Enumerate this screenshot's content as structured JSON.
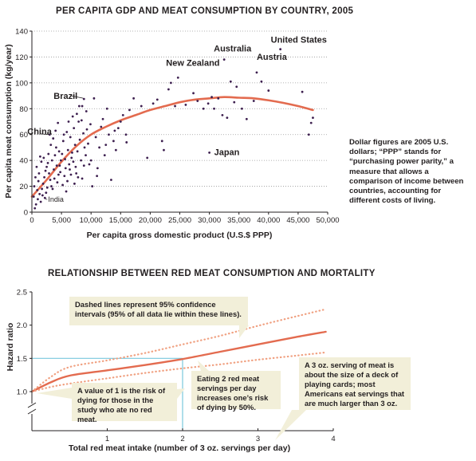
{
  "chart_data": [
    {
      "type": "scatter",
      "title": "PER CAPITA GDP AND MEAT CONSUMPTION BY COUNTRY, 2005",
      "xlabel": "Per capita gross domestic product (U.S.$ PPP)",
      "ylabel": "Per capita meat consumption (kg/year)",
      "xlim": [
        0,
        50000
      ],
      "ylim": [
        0,
        140
      ],
      "x_ticks": [
        "0",
        "5,000",
        "10,000",
        "15,000",
        "20,000",
        "25,000",
        "30,000",
        "35,000",
        "40,000",
        "45,000",
        "50,000"
      ],
      "x_tick_values": [
        0,
        5000,
        10000,
        15000,
        20000,
        25000,
        30000,
        35000,
        40000,
        45000,
        50000
      ],
      "y_ticks": [
        "0",
        "20",
        "40",
        "60",
        "80",
        "100",
        "120",
        "140"
      ],
      "y_tick_values": [
        0,
        20,
        40,
        60,
        80,
        100,
        120,
        140
      ],
      "grid": "horizontal dotted",
      "point_color": "#3d1f4f",
      "trend_color": "#e36b4f",
      "trend_line": [
        [
          0,
          12
        ],
        [
          2500,
          25
        ],
        [
          5000,
          39
        ],
        [
          7500,
          51
        ],
        [
          10000,
          60
        ],
        [
          12500,
          66
        ],
        [
          15000,
          71
        ],
        [
          17500,
          75
        ],
        [
          20000,
          79
        ],
        [
          22500,
          82
        ],
        [
          25000,
          85
        ],
        [
          27500,
          87
        ],
        [
          30000,
          88
        ],
        [
          32500,
          89
        ],
        [
          35000,
          88.5
        ],
        [
          37500,
          88
        ],
        [
          40000,
          86.5
        ],
        [
          42500,
          84.5
        ],
        [
          45000,
          82
        ],
        [
          47500,
          79
        ]
      ],
      "points": [
        [
          42000,
          126
        ],
        [
          32500,
          118
        ],
        [
          38000,
          108
        ],
        [
          24700,
          104
        ],
        [
          8800,
          87.5
        ],
        [
          8500,
          82
        ],
        [
          3000,
          60
        ],
        [
          30000,
          46
        ],
        [
          2200,
          11
        ],
        [
          500,
          3
        ],
        [
          700,
          6
        ],
        [
          1000,
          10
        ],
        [
          1300,
          14
        ],
        [
          1500,
          8
        ],
        [
          1700,
          18
        ],
        [
          1900,
          22
        ],
        [
          2100,
          27
        ],
        [
          2300,
          32
        ],
        [
          2500,
          35
        ],
        [
          2700,
          38
        ],
        [
          2900,
          30
        ],
        [
          3100,
          25
        ],
        [
          3300,
          20
        ],
        [
          3500,
          18
        ],
        [
          3700,
          33
        ],
        [
          3900,
          44
        ],
        [
          4100,
          50
        ],
        [
          4300,
          23
        ],
        [
          4500,
          29
        ],
        [
          4700,
          36
        ],
        [
          4900,
          40
        ],
        [
          5100,
          45
        ],
        [
          5300,
          55
        ],
        [
          5500,
          28
        ],
        [
          5700,
          34
        ],
        [
          5900,
          62
        ],
        [
          6100,
          48
        ],
        [
          6300,
          37
        ],
        [
          6500,
          58
        ],
        [
          6700,
          42
        ],
        [
          6900,
          74
        ],
        [
          7100,
          65
        ],
        [
          7300,
          52
        ],
        [
          7500,
          30
        ],
        [
          7700,
          47
        ],
        [
          7900,
          70
        ],
        [
          8100,
          56
        ],
        [
          8300,
          40
        ],
        [
          8500,
          26
        ],
        [
          8700,
          61
        ],
        [
          8900,
          50
        ],
        [
          9100,
          44
        ],
        [
          9300,
          64
        ],
        [
          9500,
          53
        ],
        [
          9700,
          37
        ],
        [
          9900,
          68
        ],
        [
          10200,
          20
        ],
        [
          10500,
          88
        ],
        [
          10800,
          58
        ],
        [
          11100,
          34
        ],
        [
          11400,
          50
        ],
        [
          11700,
          66
        ],
        [
          12000,
          72
        ],
        [
          12300,
          44
        ],
        [
          12700,
          80
        ],
        [
          13000,
          60
        ],
        [
          13400,
          25
        ],
        [
          13800,
          55
        ],
        [
          14200,
          48
        ],
        [
          14600,
          65
        ],
        [
          15000,
          70
        ],
        [
          15400,
          75
        ],
        [
          15900,
          60
        ],
        [
          16500,
          79
        ],
        [
          17200,
          88
        ],
        [
          18500,
          82
        ],
        [
          19500,
          42
        ],
        [
          20500,
          84
        ],
        [
          21200,
          87
        ],
        [
          22000,
          55
        ],
        [
          22300,
          48
        ],
        [
          23100,
          95
        ],
        [
          23500,
          100
        ],
        [
          24200,
          82
        ],
        [
          26000,
          83
        ],
        [
          27300,
          92
        ],
        [
          28000,
          86
        ],
        [
          29000,
          80
        ],
        [
          29800,
          84
        ],
        [
          30400,
          89
        ],
        [
          30800,
          80
        ],
        [
          31500,
          88
        ],
        [
          32200,
          75
        ],
        [
          33000,
          73
        ],
        [
          33600,
          101
        ],
        [
          34200,
          85
        ],
        [
          34600,
          97
        ],
        [
          35500,
          80
        ],
        [
          36300,
          72
        ],
        [
          37500,
          86
        ],
        [
          38800,
          101
        ],
        [
          40000,
          94
        ],
        [
          45700,
          93
        ],
        [
          46800,
          60
        ],
        [
          47200,
          69
        ],
        [
          47500,
          73
        ],
        [
          400,
          20
        ],
        [
          600,
          27
        ],
        [
          900,
          17
        ],
        [
          1200,
          30
        ],
        [
          1600,
          39
        ],
        [
          2000,
          42
        ],
        [
          2400,
          15
        ],
        [
          2800,
          45
        ],
        [
          3200,
          52
        ],
        [
          3400,
          40
        ],
        [
          3600,
          57
        ],
        [
          4000,
          63
        ],
        [
          4400,
          69
        ],
        [
          4800,
          31
        ],
        [
          5200,
          21
        ],
        [
          5600,
          41
        ],
        [
          6000,
          24
        ],
        [
          6400,
          33
        ],
        [
          6800,
          46
        ],
        [
          7200,
          22
        ],
        [
          7600,
          76
        ],
        [
          8000,
          82
        ],
        [
          8400,
          71
        ],
        [
          8800,
          36
        ],
        [
          9200,
          78
        ],
        [
          10000,
          40
        ],
        [
          11000,
          28
        ],
        [
          12500,
          52
        ],
        [
          14000,
          63
        ],
        [
          16000,
          54
        ],
        [
          300,
          12
        ],
        [
          800,
          35
        ],
        [
          1100,
          24
        ],
        [
          1400,
          43
        ],
        [
          1800,
          13
        ],
        [
          2600,
          19
        ],
        [
          3800,
          26
        ],
        [
          4200,
          36
        ],
        [
          4600,
          47
        ],
        [
          5400,
          60
        ],
        [
          5800,
          16
        ],
        [
          6200,
          70
        ],
        [
          6600,
          29
        ],
        [
          7000,
          39
        ],
        [
          7400,
          35
        ],
        [
          7800,
          27
        ]
      ],
      "labels": [
        {
          "text": "United States",
          "x": 42000,
          "y": 126
        },
        {
          "text": "Australia",
          "x": 32500,
          "y": 118
        },
        {
          "text": "Austria",
          "x": 38000,
          "y": 108
        },
        {
          "text": "New Zealand",
          "x": 24700,
          "y": 104
        },
        {
          "text": "Brazil",
          "x": 8800,
          "y": 87.5
        },
        {
          "text": "China",
          "x": 3000,
          "y": 60
        },
        {
          "text": "Japan",
          "x": 30000,
          "y": 46
        },
        {
          "text": "India",
          "x": 2200,
          "y": 11
        }
      ],
      "note": "Dollar figures are 2005 U.S. dollars; “PPP” stands for “purchasing power parity,” a measure that allows a comparison of income between countries, accounting for different costs of living."
    },
    {
      "type": "line",
      "title": "RELATIONSHIP BETWEEN RED MEAT CONSUMPTION AND MORTALITY",
      "xlabel": "Total red meat intake (number of 3 oz. servings per day)",
      "ylabel": "Hazard ratio",
      "xlim": [
        0,
        4
      ],
      "ylim": [
        1.0,
        2.5
      ],
      "axis_break": true,
      "x_ticks": [
        "1",
        "2",
        "3",
        "4"
      ],
      "x_tick_values": [
        1,
        2,
        3,
        4
      ],
      "y_ticks": [
        "1.0",
        "1.5",
        "2.0",
        "2.5"
      ],
      "y_tick_values": [
        1.0,
        1.5,
        2.0,
        2.5
      ],
      "series": [
        {
          "name": "",
          "style": "solid",
          "color": "#e36b4f",
          "x": [
            0,
            0.25,
            0.5,
            1,
            1.5,
            2,
            2.5,
            3,
            3.5,
            3.9
          ],
          "y": [
            1.0,
            1.14,
            1.24,
            1.32,
            1.4,
            1.49,
            1.6,
            1.71,
            1.82,
            1.9
          ]
        },
        {
          "name": "",
          "style": "dotted",
          "color": "#f0a080",
          "x": [
            0,
            0.25,
            0.5,
            1,
            1.5,
            2,
            2.5,
            3,
            3.5,
            3.9
          ],
          "y": [
            1.0,
            1.22,
            1.37,
            1.47,
            1.58,
            1.71,
            1.84,
            1.99,
            2.13,
            2.24
          ]
        },
        {
          "name": "",
          "style": "dotted",
          "color": "#f0a080",
          "x": [
            0,
            0.25,
            0.5,
            1,
            1.5,
            2,
            2.5,
            3,
            3.5,
            3.9
          ],
          "y": [
            1.0,
            1.07,
            1.12,
            1.2,
            1.28,
            1.35,
            1.41,
            1.48,
            1.54,
            1.59
          ]
        }
      ],
      "reference_point": {
        "x": 2,
        "y": 1.5
      },
      "reference_color": "#7ac7dd",
      "callouts": [
        {
          "key": "ci",
          "text": "Dashed lines represent 95% confidence intervals (95% of all data lie within these lines)."
        },
        {
          "key": "one",
          "text": "A value of 1 is the risk of dying for those in the study who ate no red meat."
        },
        {
          "key": "two",
          "text": "Eating 2 red meat servings per day increases one’s risk of dying by 50%."
        },
        {
          "key": "serving",
          "text": "A 3 oz. serving of meat is about the size of a deck of playing cards; most Americans eat servings that are much larger than 3 oz."
        }
      ]
    }
  ]
}
